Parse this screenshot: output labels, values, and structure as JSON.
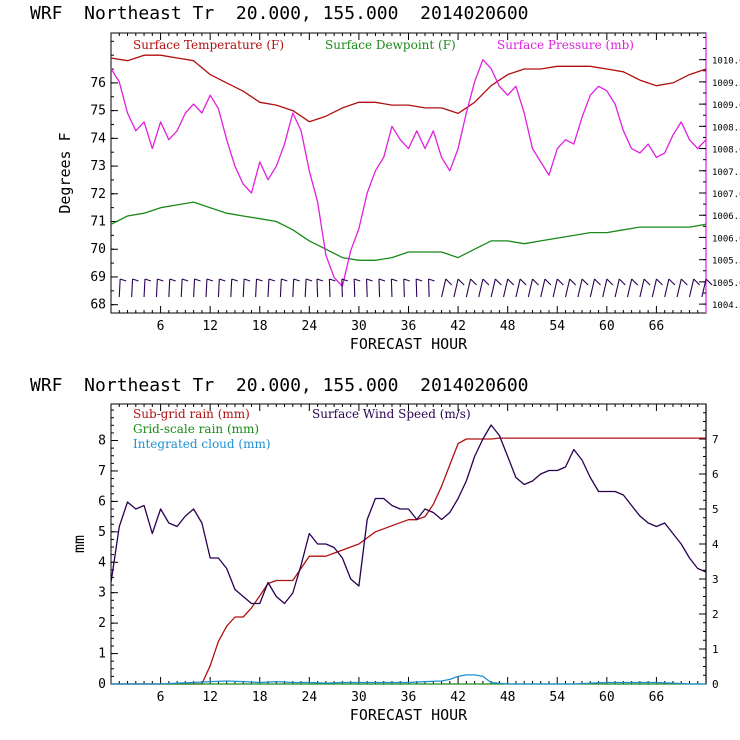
{
  "chart_data": [
    {
      "type": "line",
      "title": "WRF  Northeast Tr  20.000, 155.000  2014020600",
      "xlabel": "FORECAST HOUR",
      "ylabel": "Degrees F",
      "xticks": [
        "6",
        "12",
        "18",
        "24",
        "30",
        "36",
        "42",
        "48",
        "54",
        "60",
        "66"
      ],
      "yticks": [
        "68",
        "69",
        "70",
        "71",
        "72",
        "73",
        "74",
        "75",
        "76"
      ],
      "y2ticks": [
        "1004.5",
        "1005.0",
        "1005.5",
        "1006.0",
        "1006.5",
        "1007.0",
        "1007.5",
        "1008.0",
        "1008.5",
        "1009.0",
        "1009.5",
        "1010.0"
      ],
      "xlim": [
        0,
        72
      ],
      "ylim": [
        67.7,
        77.8
      ],
      "y2lim": [
        1004.3,
        1010.6
      ],
      "series": [
        {
          "name": "Surface Temperature (F)",
          "color": "#b01010",
          "axis": "left",
          "x": [
            0,
            2,
            4,
            6,
            8,
            10,
            12,
            14,
            16,
            18,
            20,
            22,
            24,
            26,
            28,
            30,
            32,
            34,
            36,
            38,
            40,
            42,
            44,
            46,
            48,
            50,
            52,
            54,
            56,
            58,
            60,
            62,
            64,
            66,
            68,
            70,
            72
          ],
          "y": [
            76.9,
            76.8,
            77.0,
            77.0,
            76.9,
            76.8,
            76.3,
            76.0,
            75.7,
            75.3,
            75.2,
            75.0,
            74.6,
            74.8,
            75.1,
            75.3,
            75.3,
            75.2,
            75.2,
            75.1,
            75.1,
            74.9,
            75.3,
            75.9,
            76.3,
            76.5,
            76.5,
            76.6,
            76.6,
            76.6,
            76.5,
            76.4,
            76.1,
            75.9,
            76.0,
            76.3,
            76.5
          ]
        },
        {
          "name": "Surface Dewpoint (F)",
          "color": "#1a8a1a",
          "axis": "left",
          "x": [
            0,
            2,
            4,
            6,
            8,
            10,
            12,
            14,
            16,
            18,
            20,
            22,
            24,
            26,
            28,
            30,
            32,
            34,
            36,
            38,
            40,
            42,
            44,
            46,
            48,
            50,
            52,
            54,
            56,
            58,
            60,
            62,
            64,
            66,
            68,
            70,
            72
          ],
          "y": [
            70.9,
            71.2,
            71.3,
            71.5,
            71.6,
            71.7,
            71.5,
            71.3,
            71.2,
            71.1,
            71.0,
            70.7,
            70.3,
            70.0,
            69.7,
            69.6,
            69.6,
            69.7,
            69.9,
            69.9,
            69.9,
            69.7,
            70.0,
            70.3,
            70.3,
            70.2,
            70.3,
            70.4,
            70.5,
            70.6,
            70.6,
            70.7,
            70.8,
            70.8,
            70.8,
            70.8,
            70.9
          ]
        },
        {
          "name": "Surface Pressure (mb)",
          "color": "#e020e0",
          "axis": "right",
          "x": [
            0,
            1,
            2,
            3,
            4,
            5,
            6,
            7,
            8,
            9,
            10,
            11,
            12,
            13,
            14,
            15,
            16,
            17,
            18,
            19,
            20,
            21,
            22,
            23,
            24,
            25,
            26,
            27,
            28,
            29,
            30,
            31,
            32,
            33,
            34,
            35,
            36,
            37,
            38,
            39,
            40,
            41,
            42,
            43,
            44,
            45,
            46,
            47,
            48,
            49,
            50,
            51,
            52,
            53,
            54,
            55,
            56,
            57,
            58,
            59,
            60,
            61,
            62,
            63,
            64,
            65,
            66,
            67,
            68,
            69,
            70,
            71,
            72
          ],
          "y": [
            1009.8,
            1009.5,
            1008.8,
            1008.4,
            1008.6,
            1008.0,
            1008.6,
            1008.2,
            1008.4,
            1008.8,
            1009.0,
            1008.8,
            1009.2,
            1008.9,
            1008.2,
            1007.6,
            1007.2,
            1007.0,
            1007.7,
            1007.3,
            1007.6,
            1008.1,
            1008.8,
            1008.4,
            1007.5,
            1006.8,
            1005.6,
            1005.1,
            1004.9,
            1005.7,
            1006.2,
            1007.0,
            1007.5,
            1007.8,
            1008.5,
            1008.2,
            1008.0,
            1008.4,
            1008.0,
            1008.4,
            1007.8,
            1007.5,
            1008.0,
            1008.8,
            1009.5,
            1010.0,
            1009.8,
            1009.4,
            1009.2,
            1009.4,
            1008.8,
            1008.0,
            1007.7,
            1007.4,
            1008.0,
            1008.2,
            1008.1,
            1008.7,
            1009.2,
            1009.4,
            1009.3,
            1009.0,
            1008.4,
            1008.0,
            1007.9,
            1008.1,
            1007.8,
            1007.9,
            1008.3,
            1008.6,
            1008.2,
            1008.0,
            1008.2
          ]
        }
      ]
    },
    {
      "type": "line",
      "title": "WRF  Northeast Tr  20.000, 155.000  2014020600",
      "xlabel": "FORECAST HOUR",
      "ylabel": "mm",
      "xticks": [
        "6",
        "12",
        "18",
        "24",
        "30",
        "36",
        "42",
        "48",
        "54",
        "60",
        "66"
      ],
      "yticks": [
        "0",
        "1",
        "2",
        "3",
        "4",
        "5",
        "6",
        "7",
        "8"
      ],
      "y2ticks": [
        "0",
        "1",
        "2",
        "3",
        "4",
        "5",
        "6",
        "7"
      ],
      "xlim": [
        0,
        72
      ],
      "ylim": [
        0,
        9.2
      ],
      "y2lim": [
        0,
        8.0
      ],
      "series": [
        {
          "name": "Sub-grid rain (mm)",
          "color": "#b01010",
          "axis": "left",
          "x": [
            0,
            11,
            12,
            13,
            14,
            15,
            16,
            17,
            18,
            19,
            20,
            21,
            22,
            23,
            24,
            25,
            26,
            27,
            28,
            29,
            30,
            31,
            32,
            33,
            34,
            35,
            36,
            37,
            38,
            39,
            40,
            41,
            42,
            43,
            44,
            45,
            46,
            47,
            48,
            72
          ],
          "y": [
            0,
            0,
            0.6,
            1.4,
            1.9,
            2.2,
            2.2,
            2.5,
            2.9,
            3.3,
            3.4,
            3.4,
            3.4,
            3.8,
            4.2,
            4.2,
            4.2,
            4.3,
            4.4,
            4.5,
            4.6,
            4.8,
            5.0,
            5.1,
            5.2,
            5.3,
            5.4,
            5.4,
            5.5,
            5.9,
            6.5,
            7.2,
            7.9,
            8.05,
            8.05,
            8.05,
            8.05,
            8.08,
            8.08,
            8.08
          ]
        },
        {
          "name": "Grid-scale rain (mm)",
          "color": "#1a8a1a",
          "axis": "left",
          "x": [
            0,
            72
          ],
          "y": [
            0,
            0
          ]
        },
        {
          "name": "Integrated cloud (mm)",
          "color": "#1e90d0",
          "axis": "left",
          "x": [
            0,
            6,
            8,
            10,
            12,
            14,
            16,
            18,
            20,
            22,
            24,
            26,
            28,
            30,
            32,
            34,
            36,
            38,
            40,
            41,
            42,
            43,
            44,
            45,
            46,
            48,
            56,
            58,
            60,
            62,
            64,
            66,
            68,
            70,
            72
          ],
          "y": [
            0,
            0,
            0.03,
            0.05,
            0.08,
            0.1,
            0.08,
            0.05,
            0.08,
            0.05,
            0.05,
            0.03,
            0.05,
            0.05,
            0.05,
            0.05,
            0.05,
            0.08,
            0.1,
            0.15,
            0.25,
            0.3,
            0.3,
            0.25,
            0.05,
            0,
            0,
            0.03,
            0.05,
            0.05,
            0.05,
            0.05,
            0.03,
            0,
            0
          ]
        },
        {
          "name": "Surface Wind Speed (m/s)",
          "color": "#2a0050",
          "axis": "right",
          "x": [
            0,
            1,
            2,
            3,
            4,
            5,
            6,
            7,
            8,
            9,
            10,
            11,
            12,
            13,
            14,
            15,
            16,
            17,
            18,
            19,
            20,
            21,
            22,
            23,
            24,
            25,
            26,
            27,
            28,
            29,
            30,
            31,
            32,
            33,
            34,
            35,
            36,
            37,
            38,
            39,
            40,
            41,
            42,
            43,
            44,
            45,
            46,
            47,
            48,
            49,
            50,
            51,
            52,
            53,
            54,
            55,
            56,
            57,
            58,
            59,
            60,
            61,
            62,
            63,
            64,
            65,
            66,
            67,
            68,
            69,
            70,
            71,
            72
          ],
          "y": [
            2.9,
            4.5,
            5.2,
            5.0,
            5.1,
            4.3,
            5.0,
            4.6,
            4.5,
            4.8,
            5.0,
            4.6,
            3.6,
            3.6,
            3.3,
            2.7,
            2.5,
            2.3,
            2.3,
            2.9,
            2.5,
            2.3,
            2.6,
            3.4,
            4.3,
            4.0,
            4.0,
            3.9,
            3.6,
            3.0,
            2.8,
            4.7,
            5.3,
            5.3,
            5.1,
            5.0,
            5.0,
            4.7,
            5.0,
            4.9,
            4.7,
            4.9,
            5.3,
            5.8,
            6.5,
            7.0,
            7.4,
            7.1,
            6.5,
            5.9,
            5.7,
            5.8,
            6.0,
            6.1,
            6.1,
            6.2,
            6.7,
            6.4,
            5.9,
            5.5,
            5.5,
            5.5,
            5.4,
            5.1,
            4.8,
            4.6,
            4.5,
            4.6,
            4.3,
            4.0,
            3.6,
            3.3,
            3.2
          ]
        }
      ]
    }
  ]
}
